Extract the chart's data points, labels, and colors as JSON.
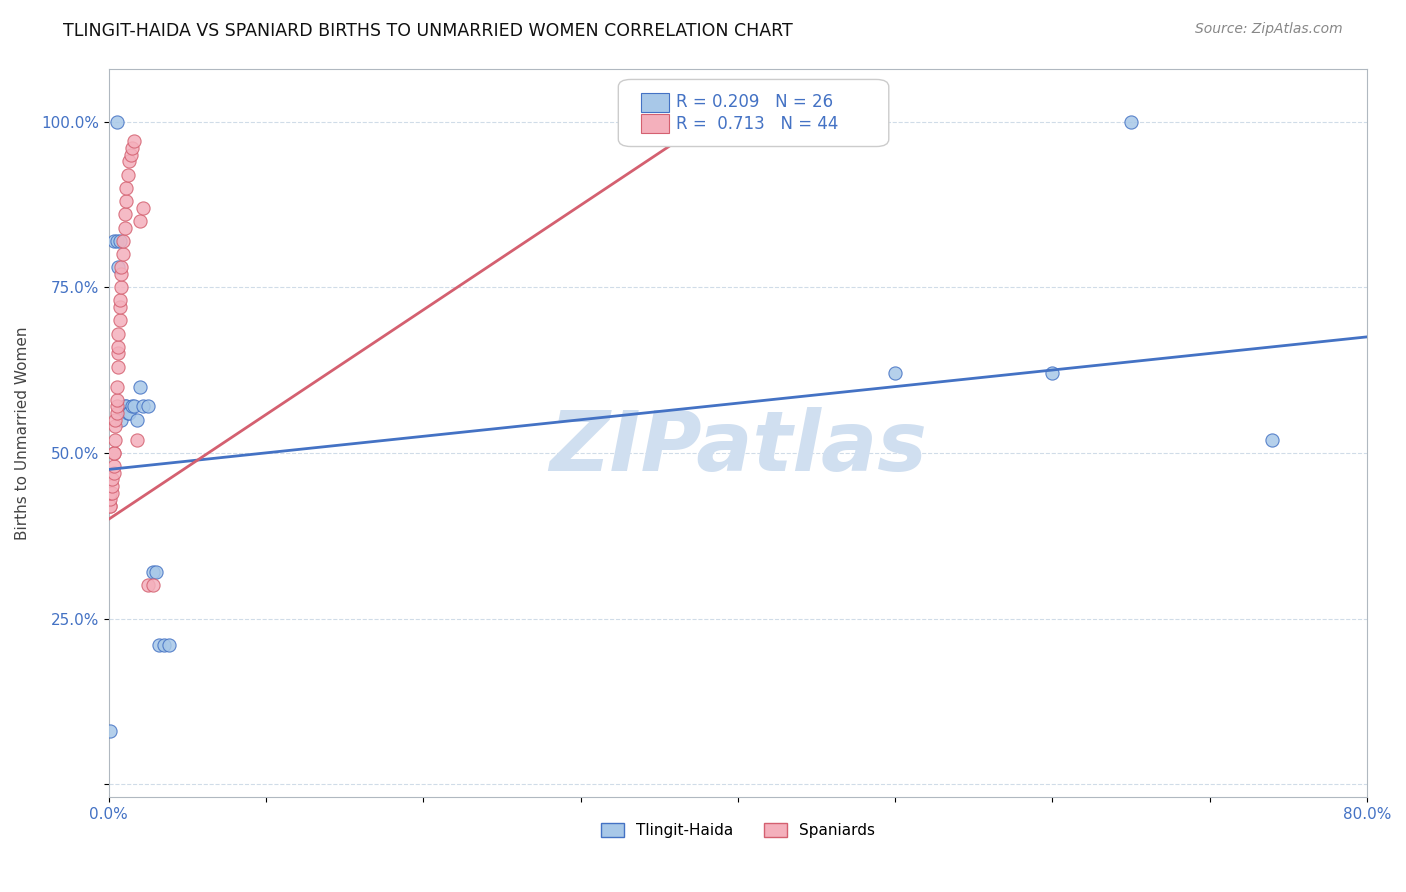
{
  "title": "TLINGIT-HAIDA VS SPANIARD BIRTHS TO UNMARRIED WOMEN CORRELATION CHART",
  "source": "Source: ZipAtlas.com",
  "ylabel": "Births to Unmarried Women",
  "legend1_label": "Tlingit-Haida",
  "legend2_label": "Spaniards",
  "r1": 0.209,
  "n1": 26,
  "r2": 0.713,
  "n2": 44,
  "color1": "#a8c8e8",
  "color2": "#f4b0bc",
  "line1_color": "#4472c4",
  "line2_color": "#d46070",
  "watermark": "ZIPatlas",
  "watermark_color": "#d0dff0",
  "tlingit_x": [
    0.001,
    0.003,
    0.005,
    0.005,
    0.006,
    0.007,
    0.008,
    0.01,
    0.011,
    0.012,
    0.013,
    0.015,
    0.016,
    0.018,
    0.02,
    0.022,
    0.025,
    0.028,
    0.03,
    0.032,
    0.035,
    0.038,
    0.5,
    0.6,
    0.65,
    0.74
  ],
  "tlingit_y": [
    0.08,
    0.82,
    0.82,
    1.0,
    0.78,
    0.82,
    0.55,
    0.57,
    0.57,
    0.56,
    0.56,
    0.57,
    0.57,
    0.55,
    0.6,
    0.57,
    0.57,
    0.32,
    0.32,
    0.21,
    0.21,
    0.21,
    0.62,
    0.62,
    1.0,
    0.52
  ],
  "spaniard_x": [
    0.001,
    0.001,
    0.001,
    0.001,
    0.002,
    0.002,
    0.002,
    0.003,
    0.003,
    0.003,
    0.003,
    0.004,
    0.004,
    0.004,
    0.005,
    0.005,
    0.005,
    0.005,
    0.006,
    0.006,
    0.006,
    0.006,
    0.007,
    0.007,
    0.007,
    0.008,
    0.008,
    0.008,
    0.009,
    0.009,
    0.01,
    0.01,
    0.011,
    0.011,
    0.012,
    0.013,
    0.014,
    0.015,
    0.016,
    0.018,
    0.02,
    0.022,
    0.025,
    0.028
  ],
  "spaniard_y": [
    0.42,
    0.42,
    0.43,
    0.44,
    0.44,
    0.45,
    0.46,
    0.47,
    0.48,
    0.5,
    0.5,
    0.52,
    0.54,
    0.55,
    0.56,
    0.57,
    0.58,
    0.6,
    0.63,
    0.65,
    0.66,
    0.68,
    0.7,
    0.72,
    0.73,
    0.75,
    0.77,
    0.78,
    0.8,
    0.82,
    0.84,
    0.86,
    0.88,
    0.9,
    0.92,
    0.94,
    0.95,
    0.96,
    0.97,
    0.52,
    0.85,
    0.87,
    0.3,
    0.3
  ],
  "xlim_data": [
    0.0,
    0.8
  ],
  "ylim_data": [
    -0.02,
    1.08
  ],
  "tl_line_x0": 0.0,
  "tl_line_y0": 0.475,
  "tl_line_x1": 0.8,
  "tl_line_y1": 0.675,
  "sp_line_x0": 0.0,
  "sp_line_y0": 0.4,
  "sp_line_x1": 0.38,
  "sp_line_y1": 1.0
}
